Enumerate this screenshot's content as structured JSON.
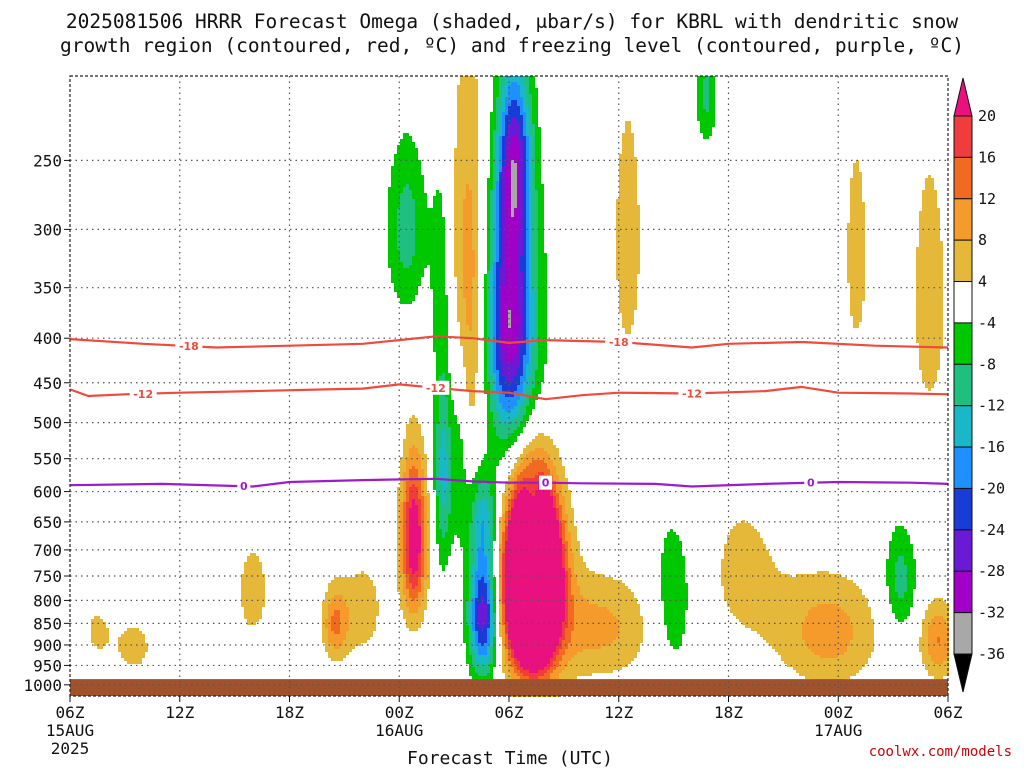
{
  "title": {
    "line1": "2025081506 HRRR Forecast Omega (shaded, μbar/s) for KBRL with dendritic snow",
    "line2": "growth region (contoured, red, ºC) and freezing level (contoured, purple, ºC)"
  },
  "credit": "coolwx.com/models",
  "colors": {
    "dendritic": "#f04a3c",
    "freezing": "#9c1ccc",
    "ground": "#a0522d",
    "grid": "#555555"
  },
  "chart_data": {
    "type": "heatmap",
    "title": "2025081506 HRRR Forecast Omega (shaded, μbar/s) for KBRL with dendritic snow growth region (contoured, red, ºC) and freezing level (contoured, purple, ºC)",
    "xlabel": "Forecast Time (UTC)",
    "ylabel": "",
    "x_unit": "hours",
    "xlim": [
      0,
      48
    ],
    "ylim_hpa": [
      1030,
      200
    ],
    "y_scale": "log",
    "grid": true,
    "x_ticks": [
      {
        "hour": 0,
        "label": "06Z",
        "sub1": "15AUG",
        "sub2": "2025"
      },
      {
        "hour": 6,
        "label": "12Z",
        "sub1": "",
        "sub2": ""
      },
      {
        "hour": 12,
        "label": "18Z",
        "sub1": "",
        "sub2": ""
      },
      {
        "hour": 18,
        "label": "00Z",
        "sub1": "16AUG",
        "sub2": ""
      },
      {
        "hour": 24,
        "label": "06Z",
        "sub1": "",
        "sub2": ""
      },
      {
        "hour": 30,
        "label": "12Z",
        "sub1": "",
        "sub2": ""
      },
      {
        "hour": 36,
        "label": "18Z",
        "sub1": "",
        "sub2": ""
      },
      {
        "hour": 42,
        "label": "00Z",
        "sub1": "17AUG",
        "sub2": ""
      },
      {
        "hour": 48,
        "label": "06Z",
        "sub1": "",
        "sub2": ""
      }
    ],
    "y_ticks": [
      {
        "hpa": 250,
        "label": "250"
      },
      {
        "hpa": 300,
        "label": "300"
      },
      {
        "hpa": 350,
        "label": "350"
      },
      {
        "hpa": 400,
        "label": "400"
      },
      {
        "hpa": 450,
        "label": "450"
      },
      {
        "hpa": 500,
        "label": "500"
      },
      {
        "hpa": 550,
        "label": "550"
      },
      {
        "hpa": 600,
        "label": "600"
      },
      {
        "hpa": 650,
        "label": "650"
      },
      {
        "hpa": 700,
        "label": "700"
      },
      {
        "hpa": 750,
        "label": "750"
      },
      {
        "hpa": 800,
        "label": "800"
      },
      {
        "hpa": 850,
        "label": "850"
      },
      {
        "hpa": 900,
        "label": "900"
      },
      {
        "hpa": 950,
        "label": "950"
      },
      {
        "hpa": 1000,
        "label": "1000"
      }
    ],
    "ground_top_hpa": 985,
    "colorbar": {
      "bins": [
        {
          "lo": 20,
          "hi": 999,
          "color": "#e8117f",
          "label": ""
        },
        {
          "lo": 16,
          "hi": 20,
          "color": "#f03c3c",
          "label": "20"
        },
        {
          "lo": 12,
          "hi": 16,
          "color": "#f06a22",
          "label": "16"
        },
        {
          "lo": 8,
          "hi": 12,
          "color": "#f49b2c",
          "label": "12"
        },
        {
          "lo": 4,
          "hi": 8,
          "color": "#e6b83a",
          "label": "8"
        },
        {
          "lo": -4,
          "hi": 4,
          "color": "#ffffff",
          "label": "4"
        },
        {
          "lo": -8,
          "hi": -4,
          "color": "#00c800",
          "label": "-4"
        },
        {
          "lo": -12,
          "hi": -8,
          "color": "#1fbf80",
          "label": "-8"
        },
        {
          "lo": -16,
          "hi": -12,
          "color": "#18b8c8",
          "label": "-12"
        },
        {
          "lo": -20,
          "hi": -16,
          "color": "#1e90ff",
          "label": "-16"
        },
        {
          "lo": -24,
          "hi": -20,
          "color": "#1a3cd6",
          "label": "-20"
        },
        {
          "lo": -28,
          "hi": -24,
          "color": "#6a1ad6",
          "label": "-24"
        },
        {
          "lo": -32,
          "hi": -28,
          "color": "#a000c8",
          "label": "-28"
        },
        {
          "lo": -36,
          "hi": -32,
          "color": "#a8a8a8",
          "label": "-32"
        },
        {
          "lo": -999,
          "hi": -36,
          "color": "#000000",
          "label": "-36"
        }
      ]
    },
    "omega_features": [
      {
        "hour": 25.3,
        "hpa": 760,
        "dh": 1.3,
        "dp": 160,
        "peak": 80
      },
      {
        "hour": 25.3,
        "hpa": 615,
        "dh": 0.45,
        "dp": 40,
        "peak": -14
      },
      {
        "hour": 25.3,
        "hpa": 770,
        "dh": 2.1,
        "dp": 260,
        "peak": 7
      },
      {
        "hour": 24.0,
        "hpa": 380,
        "dh": 1.2,
        "dp": 120,
        "peak": -26
      },
      {
        "hour": 24.3,
        "hpa": 250,
        "dh": 0.9,
        "dp": 60,
        "peak": -22
      },
      {
        "hour": 24.5,
        "hpa": 440,
        "dh": 2.0,
        "dp": 180,
        "peak": -8
      },
      {
        "hour": 22.6,
        "hpa": 830,
        "dh": 0.8,
        "dp": 140,
        "peak": -28
      },
      {
        "hour": 22.6,
        "hpa": 640,
        "dh": 0.8,
        "dp": 80,
        "peak": -12
      },
      {
        "hour": 21.8,
        "hpa": 360,
        "dh": 1.1,
        "dp": 180,
        "peak": 12
      },
      {
        "hour": 18.8,
        "hpa": 680,
        "dh": 0.7,
        "dp": 140,
        "peak": 25
      },
      {
        "hour": 20.4,
        "hpa": 560,
        "dh": 0.5,
        "dp": 160,
        "peak": -14
      },
      {
        "hour": 21.3,
        "hpa": 520,
        "dh": 0.5,
        "dp": 160,
        "peak": -8
      },
      {
        "hour": 18.4,
        "hpa": 300,
        "dh": 1.1,
        "dp": 70,
        "peak": -10
      },
      {
        "hour": 20.3,
        "hpa": 330,
        "dh": 0.6,
        "dp": 100,
        "peak": -6
      },
      {
        "hour": 29.0,
        "hpa": 860,
        "dh": 3.0,
        "dp": 120,
        "peak": 9
      },
      {
        "hour": 33.0,
        "hpa": 800,
        "dh": 1.2,
        "dp": 180,
        "peak": -8
      },
      {
        "hour": 36.8,
        "hpa": 740,
        "dh": 2.5,
        "dp": 190,
        "peak": 5
      },
      {
        "hour": 41.5,
        "hpa": 870,
        "dh": 2.7,
        "dp": 130,
        "peak": 10
      },
      {
        "hour": 45.4,
        "hpa": 760,
        "dh": 0.9,
        "dp": 110,
        "peak": -10
      },
      {
        "hour": 47.5,
        "hpa": 890,
        "dh": 1.0,
        "dp": 90,
        "peak": 12
      },
      {
        "hour": 47.0,
        "hpa": 360,
        "dh": 0.9,
        "dp": 120,
        "peak": 8
      },
      {
        "hour": 10.0,
        "hpa": 780,
        "dh": 1.0,
        "dp": 120,
        "peak": 6
      },
      {
        "hour": 16.0,
        "hpa": 820,
        "dh": 1.3,
        "dp": 120,
        "peak": 6
      },
      {
        "hour": 3.5,
        "hpa": 905,
        "dh": 1.1,
        "dp": 70,
        "peak": 6
      },
      {
        "hour": 1.5,
        "hpa": 870,
        "dh": 0.9,
        "dp": 70,
        "peak": 5
      },
      {
        "hour": 30.5,
        "hpa": 310,
        "dh": 1.3,
        "dp": 180,
        "peak": 5
      },
      {
        "hour": 43.0,
        "hpa": 320,
        "dh": 1.0,
        "dp": 150,
        "peak": 5
      },
      {
        "hour": 34.8,
        "hpa": 210,
        "dh": 0.6,
        "dp": 30,
        "peak": -9
      },
      {
        "hour": 14.5,
        "hpa": 850,
        "dh": 0.7,
        "dp": 80,
        "peak": 12
      }
    ],
    "contours": [
      {
        "name": "-18",
        "kind": "dendritic",
        "label_hours": [
          6.5,
          30.0
        ],
        "points": [
          [
            0,
            401
          ],
          [
            4,
            406
          ],
          [
            8,
            410
          ],
          [
            12,
            408
          ],
          [
            16,
            406
          ],
          [
            18,
            402
          ],
          [
            20,
            398
          ],
          [
            22,
            400
          ],
          [
            24,
            405
          ],
          [
            26,
            402
          ],
          [
            30,
            404
          ],
          [
            34,
            410
          ],
          [
            36,
            406
          ],
          [
            40,
            404
          ],
          [
            44,
            408
          ],
          [
            48,
            410
          ]
        ]
      },
      {
        "name": "-12",
        "kind": "dendritic",
        "label_hours": [
          4.0,
          20.0,
          34.0
        ],
        "points": [
          [
            0,
            458
          ],
          [
            1,
            466
          ],
          [
            3,
            464
          ],
          [
            6,
            462
          ],
          [
            10,
            460
          ],
          [
            14,
            458
          ],
          [
            16,
            457
          ],
          [
            18,
            452
          ],
          [
            20,
            456
          ],
          [
            22,
            460
          ],
          [
            24,
            462
          ],
          [
            26,
            470
          ],
          [
            28,
            465
          ],
          [
            30,
            462
          ],
          [
            34,
            463
          ],
          [
            38,
            460
          ],
          [
            40,
            455
          ],
          [
            42,
            462
          ],
          [
            46,
            463
          ],
          [
            48,
            464
          ]
        ]
      },
      {
        "name": "0",
        "kind": "freezing",
        "label_hours": [
          9.5,
          26.0,
          40.5
        ],
        "points": [
          [
            0,
            590
          ],
          [
            5,
            588
          ],
          [
            10,
            592
          ],
          [
            12,
            585
          ],
          [
            16,
            582
          ],
          [
            20,
            580
          ],
          [
            22,
            584
          ],
          [
            24,
            586
          ],
          [
            26,
            586
          ],
          [
            28,
            587
          ],
          [
            32,
            588
          ],
          [
            34,
            592
          ],
          [
            38,
            588
          ],
          [
            42,
            585
          ],
          [
            46,
            586
          ],
          [
            48,
            588
          ]
        ]
      }
    ]
  }
}
